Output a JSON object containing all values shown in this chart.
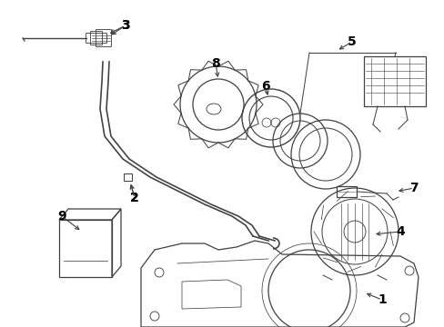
{
  "background_color": "#ffffff",
  "line_color": "#404040",
  "text_color": "#000000",
  "label_fontsize": 10,
  "figsize": [
    4.89,
    3.6
  ],
  "dpi": 100
}
